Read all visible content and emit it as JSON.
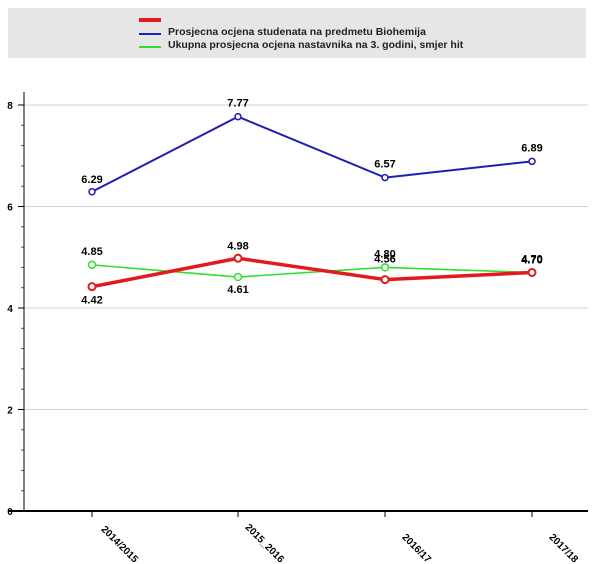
{
  "chart_data": {
    "type": "line",
    "categories": [
      "2014/2015",
      "2015_2016",
      "2016/17",
      "2017/18"
    ],
    "ylim": [
      0,
      8.5
    ],
    "yticks": [
      "0",
      "2",
      "4",
      "6",
      "8"
    ],
    "grid": true,
    "legend_position": "top",
    "series": [
      {
        "name": "",
        "color": "#e31a1c",
        "values": [
          4.42,
          4.98,
          4.56,
          4.7
        ],
        "labels": [
          "4.42",
          "4.98",
          "4.56",
          "4.70"
        ]
      },
      {
        "name": "Prosjecna ocjena studenata na predmetu Biohemija",
        "color": "#1f1fb4",
        "values": [
          6.29,
          7.77,
          6.57,
          6.89
        ],
        "labels": [
          "6.29",
          "7.77",
          "6.57",
          "6.89"
        ]
      },
      {
        "name": "Ukupna prosjecna ocjena nastavnika na 3. godini, smjer hit",
        "color": "#33dd33",
        "values": [
          4.85,
          4.61,
          4.8,
          4.7
        ],
        "labels": [
          "4.85",
          "4.61",
          "4.80",
          "4.70"
        ]
      }
    ]
  }
}
